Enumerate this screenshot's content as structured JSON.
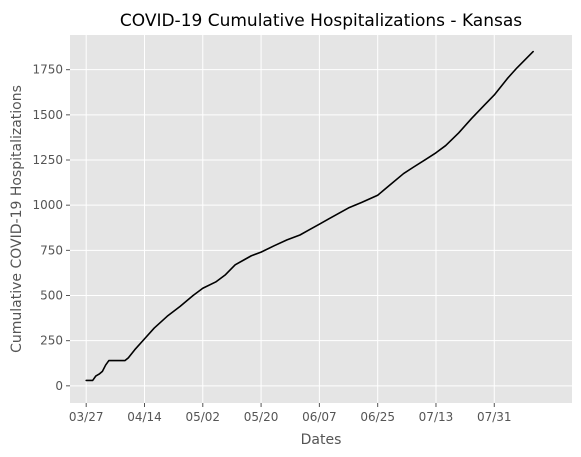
{
  "chart_data": {
    "type": "line",
    "title": "COVID-19 Cumulative Hospitalizations - Kansas",
    "xlabel": "Dates",
    "ylabel": "Cumulative COVID-19 Hospitalizations",
    "grid": true,
    "ylim": [
      -95,
      1942
    ],
    "xlim": [
      "2020-03-22",
      "2020-08-24"
    ],
    "x_ticks": [
      {
        "date": "2020-03-27",
        "label": "03/27"
      },
      {
        "date": "2020-04-14",
        "label": "04/14"
      },
      {
        "date": "2020-05-02",
        "label": "05/02"
      },
      {
        "date": "2020-05-20",
        "label": "05/20"
      },
      {
        "date": "2020-06-07",
        "label": "06/07"
      },
      {
        "date": "2020-06-25",
        "label": "06/25"
      },
      {
        "date": "2020-07-13",
        "label": "07/13"
      },
      {
        "date": "2020-07-31",
        "label": "07/31"
      }
    ],
    "y_ticks": [
      0,
      250,
      500,
      750,
      1000,
      1250,
      1500,
      1750
    ],
    "colors": {
      "line": "#000000",
      "plot_background": "#E5E5E5",
      "grid": "#FFFFFF"
    },
    "series": [
      {
        "x": [
          "2020-03-27",
          "2020-03-29",
          "2020-03-30",
          "2020-03-31",
          "2020-04-01",
          "2020-04-02",
          "2020-04-03",
          "2020-04-04",
          "2020-04-06",
          "2020-04-08",
          "2020-04-09",
          "2020-04-11",
          "2020-04-14",
          "2020-04-17",
          "2020-04-21",
          "2020-04-25",
          "2020-04-29",
          "2020-05-02",
          "2020-05-06",
          "2020-05-09",
          "2020-05-12",
          "2020-05-15",
          "2020-05-17",
          "2020-05-20",
          "2020-05-24",
          "2020-05-28",
          "2020-06-01",
          "2020-06-04",
          "2020-06-07",
          "2020-06-10",
          "2020-06-13",
          "2020-06-16",
          "2020-06-20",
          "2020-06-25",
          "2020-06-29",
          "2020-07-03",
          "2020-07-06",
          "2020-07-10",
          "2020-07-13",
          "2020-07-16",
          "2020-07-20",
          "2020-07-24",
          "2020-07-28",
          "2020-07-31",
          "2020-08-04",
          "2020-08-07",
          "2020-08-12"
        ],
        "y": [
          30,
          30,
          55,
          65,
          80,
          115,
          140,
          140,
          140,
          140,
          155,
          200,
          260,
          320,
          385,
          440,
          500,
          540,
          575,
          615,
          670,
          700,
          720,
          740,
          775,
          808,
          835,
          865,
          895,
          925,
          955,
          985,
          1015,
          1055,
          1115,
          1175,
          1210,
          1255,
          1290,
          1330,
          1400,
          1480,
          1555,
          1610,
          1700,
          1760,
          1850
        ]
      }
    ]
  }
}
